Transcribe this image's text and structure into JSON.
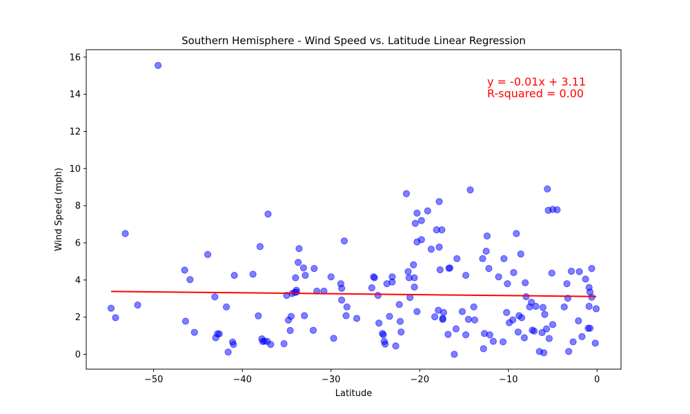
{
  "chart_data": {
    "type": "scatter",
    "title": "Southern Hemisphere - Wind Speed vs. Latitude Linear Regression",
    "xlabel": "Latitude",
    "ylabel": "Wind Speed (mph)",
    "xlim": [
      -57.6,
      2.7
    ],
    "ylim": [
      -0.8,
      16.4
    ],
    "xticks": [
      -50,
      -40,
      -30,
      -20,
      -10,
      0
    ],
    "xtick_labels": [
      "−50",
      "−40",
      "−30",
      "−20",
      "−10",
      "0"
    ],
    "yticks": [
      0,
      2,
      4,
      6,
      8,
      10,
      12,
      14,
      16
    ],
    "ytick_labels": [
      "0",
      "2",
      "4",
      "6",
      "8",
      "10",
      "12",
      "14",
      "16"
    ],
    "grid": false,
    "point_color": "#0000ff",
    "point_alpha": 0.5,
    "line_color": "#ff0000",
    "annotation_color": "#ff0000",
    "annotation_lines": [
      "y = -0.01x + 3.11",
      "R-squared = 0.00"
    ],
    "regression": {
      "slope": -0.005,
      "intercept": 3.11,
      "x_range": [
        -54.8,
        -0.1
      ]
    },
    "points": [
      [
        -54.8,
        2.48
      ],
      [
        -54.3,
        1.97
      ],
      [
        -53.2,
        6.5
      ],
      [
        -51.8,
        2.65
      ],
      [
        -49.5,
        15.55
      ],
      [
        -46.5,
        4.53
      ],
      [
        -46.4,
        1.78
      ],
      [
        -45.9,
        4.02
      ],
      [
        -45.4,
        1.18
      ],
      [
        -43.9,
        5.37
      ],
      [
        -43.1,
        3.09
      ],
      [
        -43.0,
        0.89
      ],
      [
        -42.8,
        1.1
      ],
      [
        -42.6,
        1.1
      ],
      [
        -41.8,
        2.55
      ],
      [
        -41.6,
        0.12
      ],
      [
        -41.1,
        0.66
      ],
      [
        -41.0,
        0.53
      ],
      [
        -40.9,
        4.25
      ],
      [
        -38.8,
        4.31
      ],
      [
        -38.2,
        2.07
      ],
      [
        -38.0,
        5.8
      ],
      [
        -37.8,
        0.83
      ],
      [
        -37.7,
        0.69
      ],
      [
        -37.5,
        0.71
      ],
      [
        -37.2,
        0.69
      ],
      [
        -37.1,
        7.55
      ],
      [
        -36.8,
        0.53
      ],
      [
        -35.3,
        0.57
      ],
      [
        -35.0,
        3.17
      ],
      [
        -34.8,
        1.84
      ],
      [
        -34.6,
        1.28
      ],
      [
        -34.5,
        2.04
      ],
      [
        -34.4,
        3.27
      ],
      [
        -34.1,
        3.33
      ],
      [
        -34.0,
        4.12
      ],
      [
        -33.9,
        3.45
      ],
      [
        -33.9,
        3.35
      ],
      [
        -33.7,
        4.95
      ],
      [
        -33.6,
        5.69
      ],
      [
        -33.1,
        4.65
      ],
      [
        -33.0,
        2.08
      ],
      [
        -32.9,
        4.25
      ],
      [
        -32.0,
        1.29
      ],
      [
        -31.9,
        4.62
      ],
      [
        -31.6,
        3.4
      ],
      [
        -30.8,
        3.4
      ],
      [
        -30.0,
        4.17
      ],
      [
        -29.7,
        0.86
      ],
      [
        -28.9,
        3.8
      ],
      [
        -28.8,
        3.55
      ],
      [
        -28.8,
        2.92
      ],
      [
        -28.5,
        6.1
      ],
      [
        -28.3,
        2.08
      ],
      [
        -28.2,
        2.55
      ],
      [
        -27.1,
        1.93
      ],
      [
        -25.4,
        3.58
      ],
      [
        -25.2,
        4.17
      ],
      [
        -25.1,
        4.12
      ],
      [
        -24.7,
        3.17
      ],
      [
        -24.6,
        1.68
      ],
      [
        -24.2,
        1.12
      ],
      [
        -24.1,
        1.05
      ],
      [
        -24.0,
        0.69
      ],
      [
        -23.9,
        0.55
      ],
      [
        -23.7,
        3.8
      ],
      [
        -23.4,
        2.04
      ],
      [
        -23.1,
        4.17
      ],
      [
        -23.1,
        3.89
      ],
      [
        -22.7,
        0.45
      ],
      [
        -22.3,
        2.68
      ],
      [
        -22.2,
        1.77
      ],
      [
        -22.1,
        1.2
      ],
      [
        -21.5,
        8.65
      ],
      [
        -21.3,
        4.45
      ],
      [
        -21.2,
        4.12
      ],
      [
        -21.1,
        3.06
      ],
      [
        -20.7,
        4.82
      ],
      [
        -20.6,
        4.12
      ],
      [
        -20.6,
        3.62
      ],
      [
        -20.5,
        7.05
      ],
      [
        -20.3,
        7.6
      ],
      [
        -20.3,
        2.3
      ],
      [
        -20.3,
        6.05
      ],
      [
        -19.8,
        6.17
      ],
      [
        -19.8,
        7.2
      ],
      [
        -19.1,
        7.72
      ],
      [
        -18.7,
        5.66
      ],
      [
        -18.3,
        2.02
      ],
      [
        -18.1,
        6.7
      ],
      [
        -17.9,
        2.37
      ],
      [
        -17.8,
        8.22
      ],
      [
        -17.8,
        5.77
      ],
      [
        -17.7,
        4.55
      ],
      [
        -17.5,
        6.7
      ],
      [
        -17.4,
        1.93
      ],
      [
        -17.4,
        1.88
      ],
      [
        -17.3,
        2.25
      ],
      [
        -16.8,
        1.07
      ],
      [
        -16.7,
        4.63
      ],
      [
        -16.6,
        4.65
      ],
      [
        -16.1,
        0.0
      ],
      [
        -15.9,
        1.37
      ],
      [
        -15.8,
        5.15
      ],
      [
        -15.2,
        2.3
      ],
      [
        -14.8,
        4.25
      ],
      [
        -14.8,
        1.05
      ],
      [
        -14.5,
        1.88
      ],
      [
        -14.3,
        8.85
      ],
      [
        -13.9,
        2.55
      ],
      [
        -13.8,
        1.85
      ],
      [
        -12.9,
        5.15
      ],
      [
        -12.8,
        0.3
      ],
      [
        -12.7,
        1.12
      ],
      [
        -12.5,
        5.55
      ],
      [
        -12.4,
        6.37
      ],
      [
        -12.2,
        4.62
      ],
      [
        -12.1,
        1.05
      ],
      [
        -11.7,
        0.7
      ],
      [
        -11.1,
        4.17
      ],
      [
        -10.6,
        0.67
      ],
      [
        -10.5,
        5.15
      ],
      [
        -10.2,
        2.25
      ],
      [
        -10.1,
        3.8
      ],
      [
        -9.9,
        1.7
      ],
      [
        -9.5,
        1.85
      ],
      [
        -9.4,
        4.4
      ],
      [
        -9.1,
        6.5
      ],
      [
        -8.9,
        1.2
      ],
      [
        -8.8,
        2.08
      ],
      [
        -8.6,
        5.4
      ],
      [
        -8.5,
        1.97
      ],
      [
        -8.2,
        0.89
      ],
      [
        -8.1,
        3.85
      ],
      [
        -8.0,
        3.1
      ],
      [
        -7.6,
        2.55
      ],
      [
        -7.4,
        2.8
      ],
      [
        -7.3,
        1.3
      ],
      [
        -7.1,
        1.25
      ],
      [
        -6.9,
        2.58
      ],
      [
        -6.5,
        0.15
      ],
      [
        -6.2,
        1.17
      ],
      [
        -6.1,
        2.52
      ],
      [
        -6.0,
        0.08
      ],
      [
        -5.9,
        2.15
      ],
      [
        -5.7,
        1.37
      ],
      [
        -5.6,
        8.9
      ],
      [
        -5.5,
        7.75
      ],
      [
        -5.4,
        0.85
      ],
      [
        -5.1,
        4.37
      ],
      [
        -5.0,
        1.6
      ],
      [
        -5.0,
        7.8
      ],
      [
        -4.5,
        7.78
      ],
      [
        -3.7,
        2.55
      ],
      [
        -3.4,
        3.8
      ],
      [
        -3.3,
        3.02
      ],
      [
        -3.2,
        0.15
      ],
      [
        -2.9,
        4.47
      ],
      [
        -2.7,
        0.67
      ],
      [
        -2.1,
        1.8
      ],
      [
        -2.0,
        4.45
      ],
      [
        -1.7,
        0.95
      ],
      [
        -1.3,
        4.05
      ],
      [
        -1.0,
        1.4
      ],
      [
        -0.9,
        2.58
      ],
      [
        -0.9,
        3.6
      ],
      [
        -0.8,
        1.4
      ],
      [
        -0.8,
        3.35
      ],
      [
        -0.6,
        3.07
      ],
      [
        -0.6,
        4.62
      ],
      [
        -0.2,
        0.6
      ],
      [
        -0.1,
        2.45
      ]
    ]
  }
}
